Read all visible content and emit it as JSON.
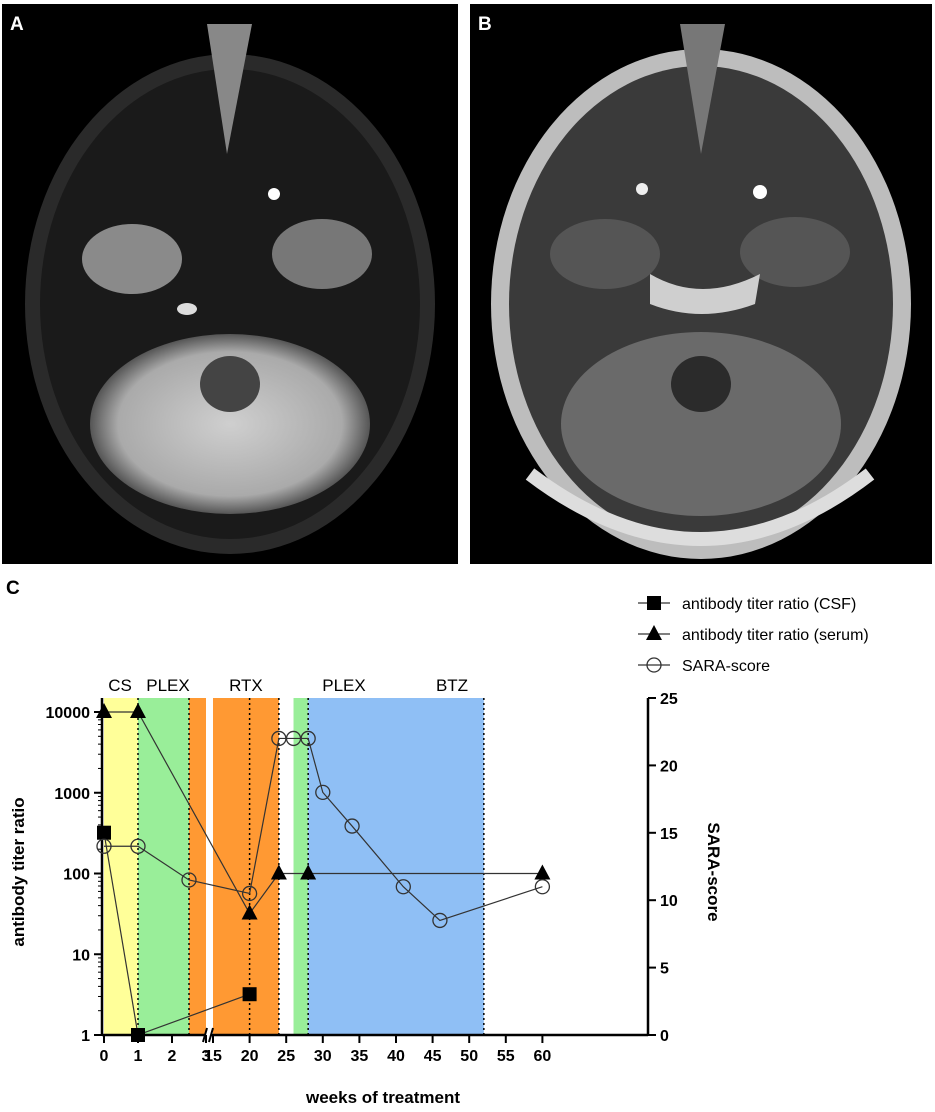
{
  "panels": {
    "a": {
      "label": "A"
    },
    "b": {
      "label": "B"
    },
    "c": {
      "label": "C"
    }
  },
  "chart_data": {
    "type": "line",
    "xlabel": "weeks of treatment",
    "ylabel_left": "antibody titer ratio",
    "ylabel_right": "SARA-score",
    "left_axis": {
      "scale": "log",
      "ticks": [
        "1",
        "10",
        "100",
        "1000",
        "10000"
      ]
    },
    "right_axis": {
      "scale": "linear",
      "ylim": [
        0,
        25
      ],
      "ticks": [
        "0",
        "5",
        "10",
        "15",
        "20",
        "25"
      ]
    },
    "x_axis": {
      "broken": true,
      "tick_labels": [
        "0",
        "1",
        "2",
        "3",
        "15",
        "20",
        "25",
        "30",
        "35",
        "40",
        "45",
        "50",
        "55",
        "60"
      ]
    },
    "treatment_periods": [
      {
        "label": "CS",
        "start": 0,
        "end": 1,
        "color": "#ffff99"
      },
      {
        "label": "PLEX",
        "start": 1,
        "end": 2.5,
        "color": "#99ee99"
      },
      {
        "label": "",
        "start": 2.5,
        "end": 3,
        "color": "#ff9933"
      },
      {
        "label": "RTX",
        "start": 14,
        "end": 24,
        "color": "#ff9933"
      },
      {
        "label": "PLEX",
        "start": 26,
        "end": 28,
        "color": "#99ee99"
      },
      {
        "label": "BTZ",
        "start": 28,
        "end": 52,
        "color": "#8fbff5"
      }
    ],
    "dotted_lines_at": [
      1,
      2.5,
      20,
      24,
      28,
      52
    ],
    "legend": {
      "position": "top-right"
    },
    "series": [
      {
        "name": "antibody titer ratio (CSF)",
        "axis": "left",
        "marker": "square",
        "x": [
          0,
          1,
          20
        ],
        "y": [
          320,
          1,
          3.2
        ]
      },
      {
        "name": "antibody titer ratio (serum)",
        "axis": "left",
        "marker": "triangle",
        "x": [
          0,
          1,
          20,
          24,
          28,
          60
        ],
        "y": [
          10000,
          10000,
          32,
          100,
          100,
          100
        ]
      },
      {
        "name": "SARA-score",
        "axis": "right",
        "marker": "circle-open",
        "x": [
          0,
          1,
          2.5,
          20,
          24,
          26,
          28,
          30,
          34,
          41,
          46,
          60
        ],
        "y": [
          14,
          14,
          11.5,
          10.5,
          22,
          22,
          22,
          18,
          15.5,
          11,
          8.5,
          11
        ]
      }
    ]
  }
}
